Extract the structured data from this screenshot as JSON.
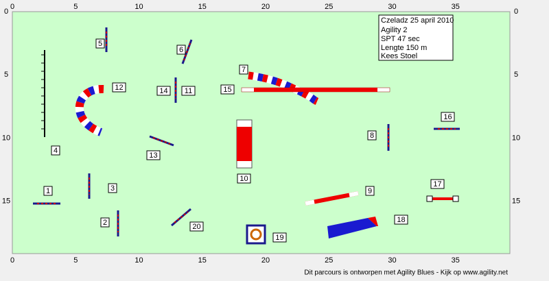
{
  "axes": {
    "x_ticks": [
      0,
      5,
      10,
      15,
      20,
      25,
      30,
      35
    ],
    "y_ticks": [
      0,
      5,
      10,
      15
    ]
  },
  "info": [
    "Czeladz 25 april 2010",
    "Agility 2",
    "SPT 47 sec",
    "Lengte 150 m",
    "Kees Stoel"
  ],
  "obstacle_labels": [
    1,
    2,
    3,
    4,
    5,
    6,
    7,
    8,
    9,
    10,
    11,
    12,
    13,
    14,
    15,
    16,
    17,
    18,
    19,
    20
  ],
  "footer": "Dit parcours is ontworpen met Agility Blues - Kijk op www.agility.net"
}
